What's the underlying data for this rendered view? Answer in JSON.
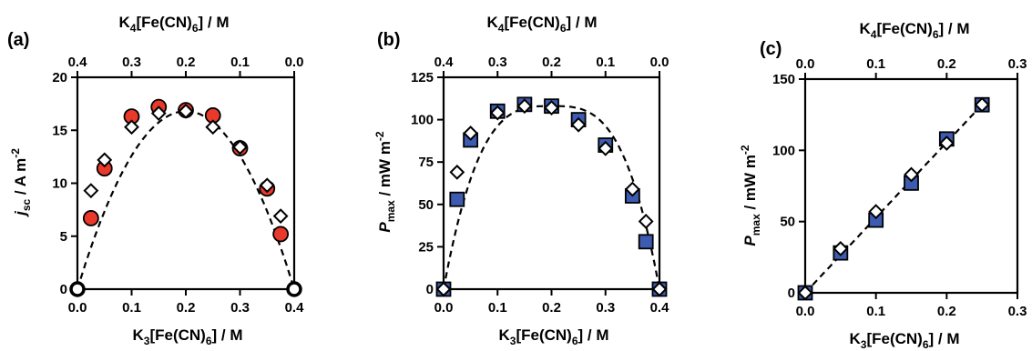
{
  "colors": {
    "circle_fill": "#e8392a",
    "square_fill": "#3d5bb0",
    "diamond_fill": "#ffffff",
    "stroke": "#000000",
    "fit_line": "#000000"
  },
  "chart_data": [
    {
      "panel": "(a)",
      "type": "scatter",
      "xlabel": {
        "main": "K",
        "sub1": "3",
        "mid": "[Fe(CN)",
        "sub2": "6",
        "end": "]  / M"
      },
      "x2label": {
        "main": "K",
        "sub1": "4",
        "mid": "[Fe(CN)",
        "sub2": "6",
        "end": "] / M"
      },
      "ylabel": {
        "main": "j",
        "sub": "sc",
        "end": " / A m",
        "sup": "-2"
      },
      "xlim": [
        0,
        0.4
      ],
      "x_ticks": [
        "0.0",
        "0.1",
        "0.2",
        "0.3",
        "0.4"
      ],
      "x2_ticks": [
        "0.4",
        "0.3",
        "0.2",
        "0.1",
        "0.0"
      ],
      "x2_reversed": true,
      "ylim": [
        0,
        20
      ],
      "y_ticks": [
        "0",
        "5",
        "10",
        "15",
        "20"
      ],
      "series": [
        {
          "marker": "circle",
          "color": "#e8392a",
          "x": [
            0.025,
            0.05,
            0.1,
            0.15,
            0.2,
            0.25,
            0.3,
            0.35,
            0.375
          ],
          "y": [
            6.7,
            11.4,
            16.3,
            17.2,
            16.9,
            16.4,
            13.3,
            9.5,
            5.2
          ]
        },
        {
          "marker": "diamond",
          "color": "#ffffff",
          "x": [
            0.025,
            0.05,
            0.1,
            0.15,
            0.2,
            0.25,
            0.3,
            0.35,
            0.375
          ],
          "y": [
            9.3,
            12.2,
            15.3,
            16.6,
            16.8,
            15.3,
            13.4,
            9.8,
            6.9
          ]
        },
        {
          "marker": "circle-open",
          "color": "#ffffff",
          "x": [
            0,
            0.4
          ],
          "y": [
            0,
            0
          ]
        }
      ],
      "fit_curve": {
        "style": "dashed",
        "shape": "parabola",
        "peak_x": 0.2,
        "peak_y": 16.8,
        "x_range": [
          0,
          0.4
        ]
      }
    },
    {
      "panel": "(b)",
      "type": "scatter",
      "xlabel": {
        "main": "K",
        "sub1": "3",
        "mid": "[Fe(CN)",
        "sub2": "6",
        "end": "] / M"
      },
      "x2label": {
        "main": "K",
        "sub1": "4",
        "mid": "[Fe(CN)",
        "sub2": "6",
        "end": "] / M"
      },
      "ylabel": {
        "main": "P",
        "sub": "max",
        "end": " / mW m",
        "sup": "-2"
      },
      "xlim": [
        0,
        0.4
      ],
      "x_ticks": [
        "0.0",
        "0.1",
        "0.2",
        "0.3",
        "0.4"
      ],
      "x2_ticks": [
        "0.4",
        "0.3",
        "0.2",
        "0.1",
        "0.0"
      ],
      "x2_reversed": true,
      "ylim": [
        0,
        125
      ],
      "y_ticks": [
        "0",
        "25",
        "50",
        "75",
        "100",
        "125"
      ],
      "series": [
        {
          "marker": "square",
          "color": "#3d5bb0",
          "x": [
            0,
            0.025,
            0.05,
            0.1,
            0.15,
            0.2,
            0.25,
            0.3,
            0.35,
            0.375,
            0.4
          ],
          "y": [
            0,
            53,
            88,
            105,
            109,
            108,
            100,
            85,
            55,
            28,
            0
          ]
        },
        {
          "marker": "diamond",
          "color": "#ffffff",
          "x": [
            0,
            0.025,
            0.05,
            0.1,
            0.15,
            0.2,
            0.25,
            0.3,
            0.35,
            0.375,
            0.4
          ],
          "y": [
            0,
            69,
            92,
            104,
            108,
            107,
            97,
            83,
            59,
            40,
            0
          ]
        }
      ],
      "fit_curve": {
        "style": "dashed",
        "shape": "steep-dome",
        "peak_x": 0.2,
        "peak_y": 108,
        "x_range": [
          0,
          0.4
        ]
      }
    },
    {
      "panel": "(c)",
      "type": "scatter",
      "xlabel": {
        "main": "K",
        "sub1": "3",
        "mid": "[Fe(CN)",
        "sub2": "6",
        "end": "] / M"
      },
      "x2label": {
        "main": "K",
        "sub1": "4",
        "mid": "[Fe(CN)",
        "sub2": "6",
        "end": "] / M"
      },
      "ylabel": {
        "main": "P",
        "sub": "max",
        "end": " / mW m",
        "sup": "-2"
      },
      "xlim": [
        0,
        0.3
      ],
      "x_ticks": [
        "0.0",
        "0.1",
        "0.2",
        "0.3"
      ],
      "x2_ticks": [
        "0.0",
        "0.1",
        "0.2",
        "0.3"
      ],
      "x2_reversed": false,
      "ylim": [
        0,
        150
      ],
      "y_ticks": [
        "0",
        "50",
        "100",
        "150"
      ],
      "series": [
        {
          "marker": "square",
          "color": "#3d5bb0",
          "x": [
            0,
            0.05,
            0.1,
            0.15,
            0.2,
            0.25
          ],
          "y": [
            0,
            28,
            51,
            77,
            108,
            132
          ]
        },
        {
          "marker": "diamond",
          "color": "#ffffff",
          "x": [
            0,
            0.05,
            0.1,
            0.15,
            0.2,
            0.25
          ],
          "y": [
            0,
            31,
            57,
            83,
            105,
            132
          ]
        }
      ],
      "fit_curve": {
        "style": "dashed",
        "shape": "linear",
        "slope": 528,
        "x_range": [
          0,
          0.25
        ]
      }
    }
  ]
}
